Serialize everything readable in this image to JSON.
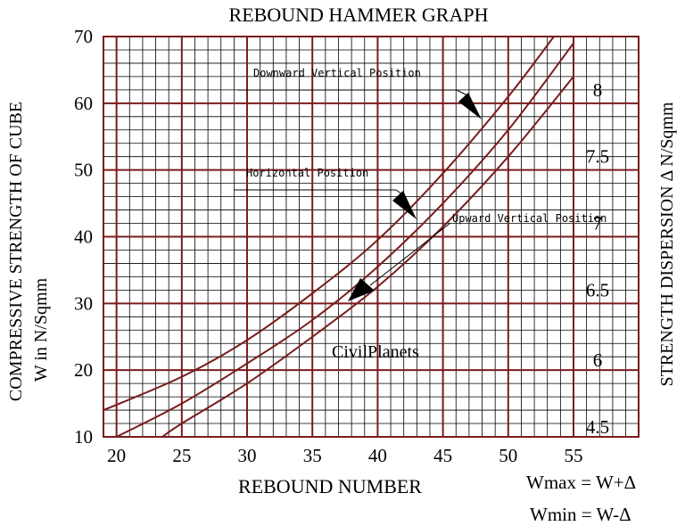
{
  "chart_data": {
    "type": "line",
    "title": "REBOUND HAMMER GRAPH",
    "xlabel": "REBOUND NUMBER",
    "ylabel_line1": "COMPRESSIVE STRENGTH OF CUBE",
    "ylabel_line2": "W in N/Sqmm",
    "right_label": "STRENGTH DISPERSION Δ N/Sqmm",
    "xlim": [
      19,
      55
    ],
    "ylim": [
      10,
      70
    ],
    "x_ticks": [
      20,
      25,
      30,
      35,
      40,
      45,
      50,
      55
    ],
    "y_ticks": [
      10,
      20,
      30,
      40,
      50,
      60,
      70
    ],
    "grid": true,
    "dispersion_labels": [
      {
        "text": "8",
        "y": 62
      },
      {
        "text": "7.5",
        "y": 52
      },
      {
        "text": "7",
        "y": 42
      },
      {
        "text": "6.5",
        "y": 32
      },
      {
        "text": "6",
        "y": 21.5
      },
      {
        "text": "4.5",
        "y": 11.5
      }
    ],
    "series": [
      {
        "name": "Downward Vertical Position",
        "x": [
          19,
          25,
          30,
          35,
          40,
          45,
          50,
          53.5
        ],
        "y": [
          14,
          19,
          24.5,
          31.5,
          39.5,
          49.5,
          61,
          70
        ]
      },
      {
        "name": "Horizontal Position",
        "x": [
          20,
          25,
          30,
          35,
          40,
          45,
          50,
          55
        ],
        "y": [
          10,
          15,
          21,
          27.5,
          35.5,
          45,
          56,
          69
        ]
      },
      {
        "name": "Upward Vertical Position",
        "x": [
          23.5,
          25,
          30,
          35,
          40,
          45,
          50,
          55
        ],
        "y": [
          10,
          12,
          18,
          25,
          32.5,
          41.5,
          52,
          64
        ]
      }
    ],
    "line_color": "#7a1c1c",
    "grid_color": "#000000",
    "major_grid_color": "#7a1c1c"
  },
  "annotations": {
    "watermark": "CivilPlanets",
    "formula_max": "Wmax = W+Δ",
    "formula_min": "Wmin = W-Δ"
  }
}
